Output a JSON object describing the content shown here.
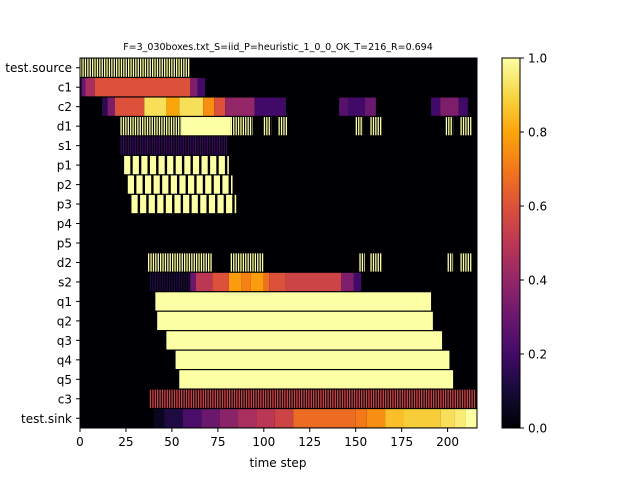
{
  "chart_data": {
    "type": "heatmap",
    "title": "F=3_030boxes.txt_S=iid_P=heuristic_1_0_0_OK_T=216_R=0.694",
    "xlabel": "time step",
    "ylabel": "",
    "xlim": [
      0,
      216
    ],
    "xticks": [
      0,
      25,
      50,
      75,
      100,
      125,
      150,
      175,
      200
    ],
    "colormap": "inferno",
    "colorbar": {
      "range": [
        0.0,
        1.0
      ],
      "ticks": [
        "0.0",
        "0.2",
        "0.4",
        "0.6",
        "0.8",
        "1.0"
      ]
    },
    "rows": [
      {
        "label": "test.source",
        "segments": [
          [
            0,
            60,
            1,
            "stripe"
          ]
        ]
      },
      {
        "label": "c1",
        "segments": [
          [
            0,
            1,
            0.12
          ],
          [
            1,
            3,
            0.3
          ],
          [
            3,
            8,
            0.45
          ],
          [
            8,
            60,
            0.6
          ],
          [
            60,
            64,
            0.35
          ],
          [
            64,
            68,
            0.2
          ]
        ]
      },
      {
        "label": "c2",
        "segments": [
          [
            12,
            15,
            0.15
          ],
          [
            15,
            19,
            0.35
          ],
          [
            19,
            35,
            0.6
          ],
          [
            35,
            47,
            0.92
          ],
          [
            47,
            54,
            0.8
          ],
          [
            54,
            67,
            0.92
          ],
          [
            67,
            73,
            0.75
          ],
          [
            73,
            79,
            0.6
          ],
          [
            79,
            95,
            0.4
          ],
          [
            95,
            112,
            0.2
          ],
          [
            141,
            146,
            0.25
          ],
          [
            146,
            155,
            0.2
          ],
          [
            155,
            161,
            0.3
          ],
          [
            191,
            196,
            0.2
          ],
          [
            196,
            206,
            0.35
          ],
          [
            206,
            211,
            0.2
          ]
        ]
      },
      {
        "label": "d1",
        "segments": [
          [
            22,
            55,
            1,
            "stripe"
          ],
          [
            55,
            82,
            1
          ],
          [
            82,
            94,
            1,
            "stripe"
          ],
          [
            100,
            104,
            1,
            "stripe"
          ],
          [
            108,
            113,
            1,
            "stripe"
          ],
          [
            150,
            154,
            1,
            "stripe"
          ],
          [
            158,
            164,
            1,
            "stripe"
          ],
          [
            199,
            203,
            1,
            "stripe"
          ],
          [
            207,
            213,
            1,
            "stripe"
          ]
        ]
      },
      {
        "label": "s1",
        "segments": [
          [
            22,
            80,
            0.18,
            "stripe"
          ]
        ]
      },
      {
        "label": "p1",
        "segments": [
          [
            24,
            81,
            1,
            "blocks"
          ]
        ]
      },
      {
        "label": "p2",
        "segments": [
          [
            26,
            83,
            1,
            "blocks"
          ]
        ]
      },
      {
        "label": "p3",
        "segments": [
          [
            28,
            85,
            1,
            "blocks"
          ]
        ]
      },
      {
        "label": "p4",
        "segments": []
      },
      {
        "label": "p5",
        "segments": []
      },
      {
        "label": "d2",
        "segments": [
          [
            37,
            72,
            1,
            "stripe"
          ],
          [
            82,
            100,
            1,
            "stripe"
          ],
          [
            152,
            155,
            1,
            "stripe"
          ],
          [
            158,
            164,
            1,
            "stripe"
          ],
          [
            200,
            203,
            1,
            "stripe"
          ],
          [
            207,
            213,
            1,
            "stripe"
          ]
        ]
      },
      {
        "label": "s2",
        "segments": [
          [
            38,
            60,
            0.12,
            "stripe"
          ],
          [
            60,
            63,
            0.3
          ],
          [
            63,
            72,
            0.5
          ],
          [
            72,
            81,
            0.6
          ],
          [
            81,
            88,
            0.78
          ],
          [
            88,
            93,
            0.72
          ],
          [
            93,
            100,
            0.78
          ],
          [
            100,
            103,
            0.68
          ],
          [
            103,
            112,
            0.6
          ],
          [
            112,
            142,
            0.55
          ],
          [
            142,
            149,
            0.35
          ],
          [
            149,
            153,
            0.2
          ]
        ]
      },
      {
        "label": "q1",
        "segments": [
          [
            41,
            191,
            1
          ]
        ]
      },
      {
        "label": "q2",
        "segments": [
          [
            42,
            192,
            1
          ]
        ]
      },
      {
        "label": "q3",
        "segments": [
          [
            47,
            197,
            1
          ]
        ]
      },
      {
        "label": "q4",
        "segments": [
          [
            52,
            201,
            1
          ]
        ]
      },
      {
        "label": "q5",
        "segments": [
          [
            54,
            203,
            1
          ]
        ]
      },
      {
        "label": "c3",
        "segments": [
          [
            38,
            215,
            0.55,
            "stripe"
          ]
        ]
      },
      {
        "label": "test.sink",
        "segments": [
          [
            40,
            46,
            0.05
          ],
          [
            46,
            56,
            0.12
          ],
          [
            56,
            66,
            0.22
          ],
          [
            66,
            76,
            0.3
          ],
          [
            76,
            86,
            0.38
          ],
          [
            86,
            96,
            0.45
          ],
          [
            96,
            106,
            0.5
          ],
          [
            106,
            116,
            0.55
          ],
          [
            116,
            150,
            0.67
          ],
          [
            150,
            156,
            0.7
          ],
          [
            156,
            166,
            0.75
          ],
          [
            166,
            176,
            0.85
          ],
          [
            176,
            196,
            0.88
          ],
          [
            196,
            204,
            0.92
          ],
          [
            204,
            210,
            0.95
          ],
          [
            210,
            216,
            1
          ]
        ]
      }
    ]
  }
}
